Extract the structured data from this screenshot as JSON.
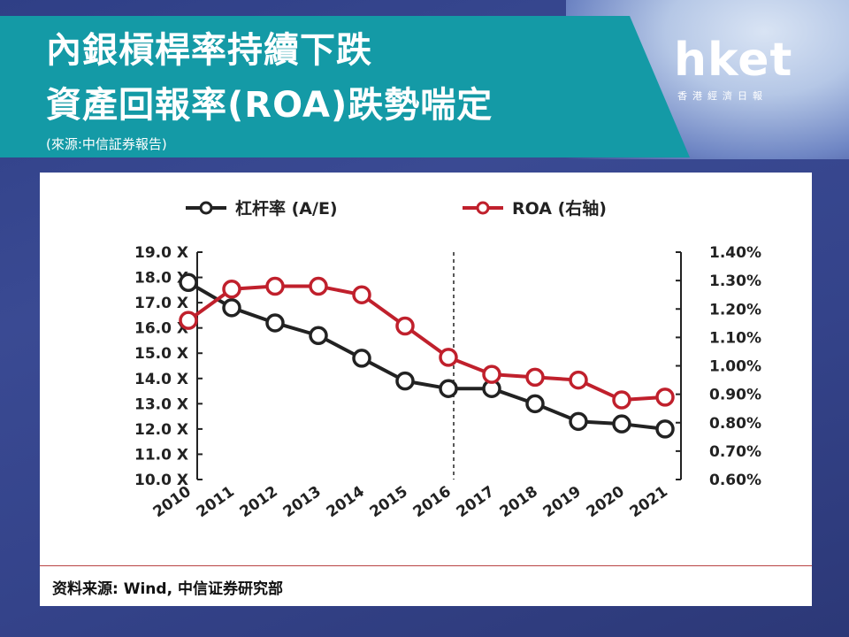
{
  "header": {
    "title_line1": "內銀槓桿率持續下跌",
    "title_line2": "資產回報率(ROA)跌勢喘定",
    "subtitle": "(來源:中信証券報告)"
  },
  "logo": {
    "word": "hket",
    "sub": "香港經濟日報"
  },
  "colors": {
    "banner": "#149aa6",
    "series_leverage": "#222222",
    "series_roa": "#c0202c"
  },
  "chart_data": {
    "type": "line",
    "x": [
      "2010",
      "2011",
      "2012",
      "2013",
      "2014",
      "2015",
      "2016",
      "2017",
      "2018",
      "2019",
      "2020",
      "2021"
    ],
    "series": [
      {
        "name": "杠杆率 (A/E)",
        "axis": "left",
        "values": [
          17.8,
          16.8,
          16.2,
          15.7,
          14.8,
          13.9,
          13.6,
          13.6,
          13.0,
          12.3,
          12.2,
          12.0
        ]
      },
      {
        "name": "ROA (右轴)",
        "axis": "right",
        "values": [
          1.16,
          1.27,
          1.28,
          1.28,
          1.25,
          1.14,
          1.03,
          0.97,
          0.96,
          0.95,
          0.88,
          0.89
        ]
      }
    ],
    "y_left": {
      "ylim": [
        10.0,
        19.0
      ],
      "ticks": [
        "19.0 X",
        "18.0 X",
        "17.0 X",
        "16.0 X",
        "15.0 X",
        "14.0 X",
        "13.0 X",
        "12.0 X",
        "11.0 X",
        "10.0 X"
      ]
    },
    "y_right": {
      "ylim": [
        0.6,
        1.4
      ],
      "ticks": [
        "1.40%",
        "1.30%",
        "1.20%",
        "1.10%",
        "1.00%",
        "0.90%",
        "0.80%",
        "0.70%",
        "0.60%"
      ]
    },
    "vline_at": "2016",
    "legend_position": "top",
    "grid": false,
    "source": "资料来源: Wind, 中信证券研究部"
  }
}
